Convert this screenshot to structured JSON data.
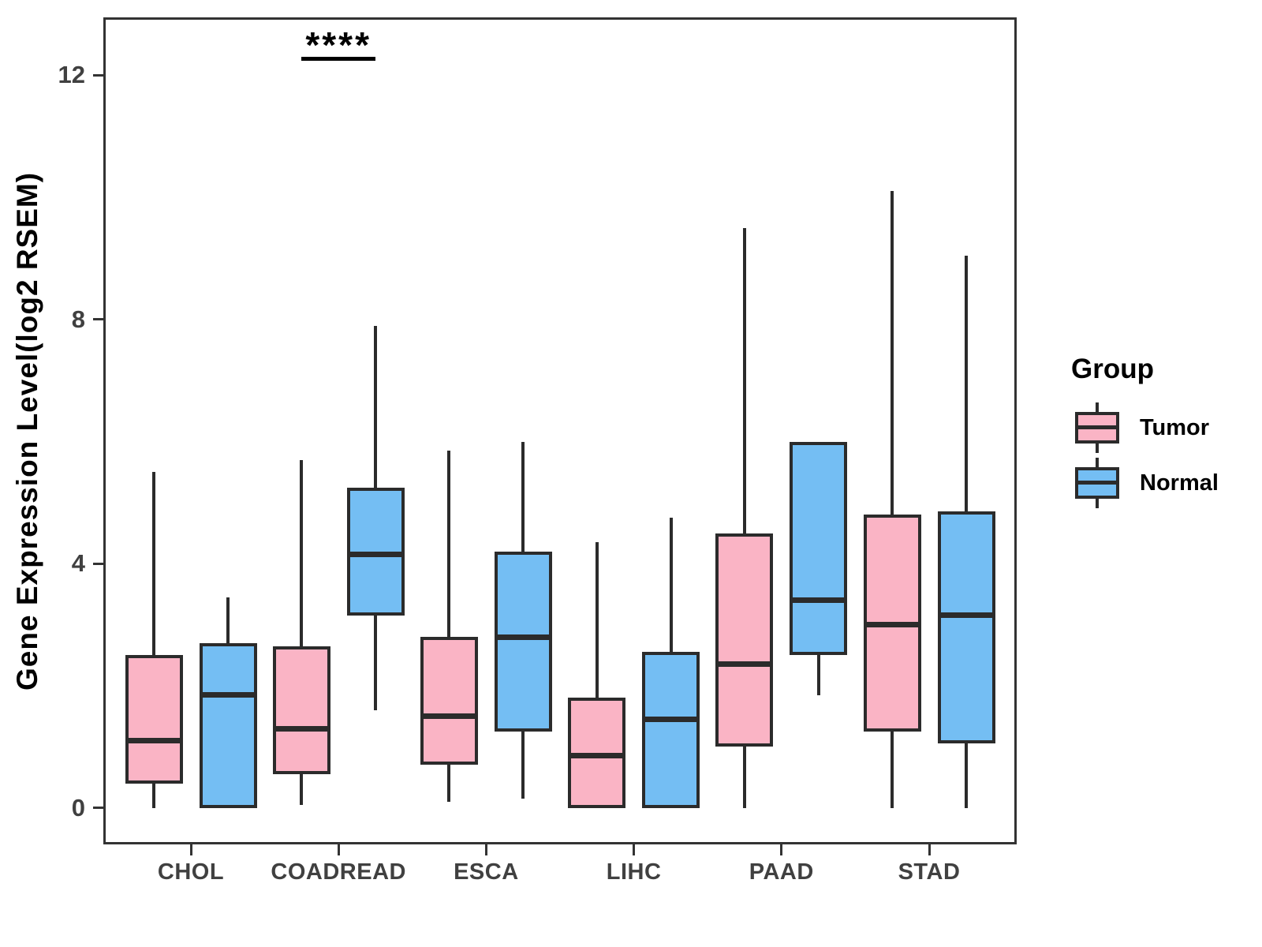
{
  "figure": {
    "y_axis": {
      "title": "Gene Expression Level(log2 RSEM)"
    },
    "legend": {
      "title": "Group",
      "items": [
        {
          "label": "Tumor",
          "color": "#FAB4C5"
        },
        {
          "label": "Normal",
          "color": "#74BEF3"
        }
      ]
    },
    "annotation": {
      "label": "****",
      "category": "COADREAD"
    }
  },
  "chart_data": {
    "type": "boxplot",
    "title": "",
    "xlabel": "",
    "ylabel": "Gene Expression Level(log2 RSEM)",
    "ylim": [
      -0.6,
      12.95
    ],
    "yticks": [
      0,
      4,
      8,
      12
    ],
    "grid": false,
    "legend_position": "right",
    "categories": [
      "CHOL",
      "COADREAD",
      "ESCA",
      "LIHC",
      "PAAD",
      "STAD"
    ],
    "series": [
      {
        "name": "Tumor",
        "color": "#FAB4C5",
        "boxes": [
          {
            "min": 0.0,
            "q1": 0.4,
            "median": 1.1,
            "q3": 2.5,
            "max": 5.5
          },
          {
            "min": 0.05,
            "q1": 0.55,
            "median": 1.3,
            "q3": 2.65,
            "max": 5.7
          },
          {
            "min": 0.1,
            "q1": 0.7,
            "median": 1.5,
            "q3": 2.8,
            "max": 5.85
          },
          {
            "min": 0.0,
            "q1": 0.0,
            "median": 0.85,
            "q3": 1.8,
            "max": 4.35
          },
          {
            "min": 0.0,
            "q1": 1.0,
            "median": 2.35,
            "q3": 4.5,
            "max": 9.5
          },
          {
            "min": 0.0,
            "q1": 1.25,
            "median": 3.0,
            "q3": 4.8,
            "max": 10.1
          }
        ]
      },
      {
        "name": "Normal",
        "color": "#74BEF3",
        "boxes": [
          {
            "min": 0.0,
            "q1": 0.0,
            "median": 1.85,
            "q3": 2.7,
            "max": 3.45
          },
          {
            "min": 1.6,
            "q1": 3.15,
            "median": 4.15,
            "q3": 5.25,
            "max": 7.9
          },
          {
            "min": 0.15,
            "q1": 1.25,
            "median": 2.8,
            "q3": 4.2,
            "max": 6.0
          },
          {
            "min": 0.0,
            "q1": 0.0,
            "median": 1.45,
            "q3": 2.55,
            "max": 4.75
          },
          {
            "min": 1.85,
            "q1": 2.5,
            "median": 3.4,
            "q3": 6.0,
            "max": 6.0
          },
          {
            "min": 0.0,
            "q1": 1.05,
            "median": 3.15,
            "q3": 4.85,
            "max": 9.05
          }
        ]
      }
    ],
    "significance": [
      {
        "category": "COADREAD",
        "label": "****"
      }
    ]
  },
  "colors": {
    "stroke": "#2b2b2b",
    "panel_border": "#333333",
    "tick_label": "#404040"
  }
}
